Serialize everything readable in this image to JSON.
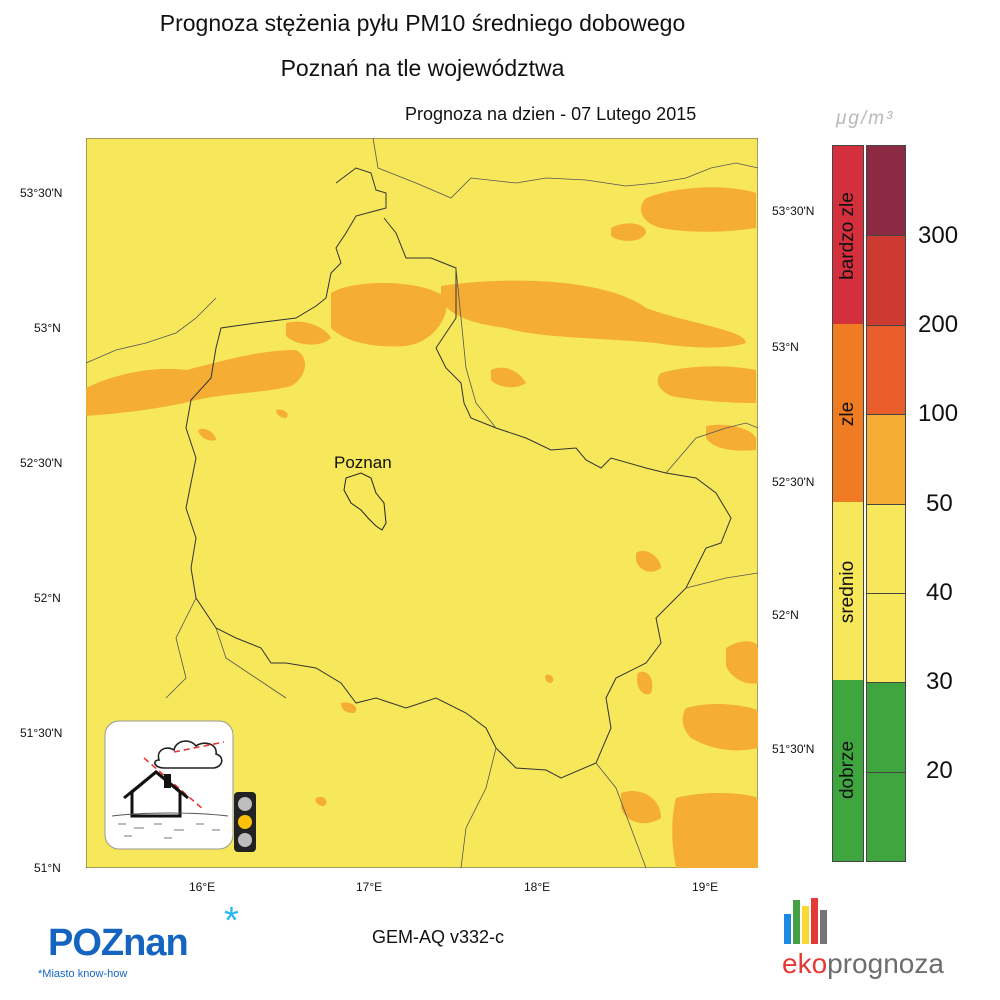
{
  "title_line1": "Prognoza stężenia pyłu PM10 średniego dobowego",
  "title_line2": "Poznań na tle województwa",
  "forecast_date": "Prognoza na dzien -  07 Lutego 2015",
  "unit": "μg/m³",
  "city_label": "Poznan",
  "model_label": "GEM-AQ v332-c",
  "lat_labels_left": [
    "53°30'N",
    "53°N",
    "52°30'N",
    "52°N",
    "51°30'N",
    "51°N"
  ],
  "lat_labels_right": [
    "53°30'N",
    "53°N",
    "52°30'N",
    "52°N",
    "51°30'N"
  ],
  "lon_labels": [
    "16°E",
    "17°E",
    "18°E",
    "19°E"
  ],
  "colorbar": {
    "categories": [
      {
        "label": "bardzo zle",
        "color": "#d32f3c"
      },
      {
        "label": "zle",
        "color": "#ef7b22"
      },
      {
        "label": "srednio",
        "color": "#f6e85a"
      },
      {
        "label": "dobrze",
        "color": "#3fa63f"
      }
    ],
    "levels": [
      {
        "color": "#8b2a42"
      },
      {
        "color": "#cc3a30"
      },
      {
        "color": "#e85d2a"
      },
      {
        "color": "#f5ad33"
      },
      {
        "color": "#f6e85a"
      },
      {
        "color": "#f6e85a"
      },
      {
        "color": "#3fa63f"
      },
      {
        "color": "#3fa63f"
      }
    ],
    "values": [
      "300",
      "200",
      "100",
      "50",
      "40",
      "30",
      "20"
    ]
  },
  "colors": {
    "map_background": "#f6e85a",
    "high_concentration": "#f5ad33"
  },
  "logos": {
    "poznan": "POZnan",
    "poznan_tagline": "*Miasto know-how",
    "eko_part1": "eko",
    "eko_part2": "prognoza"
  }
}
